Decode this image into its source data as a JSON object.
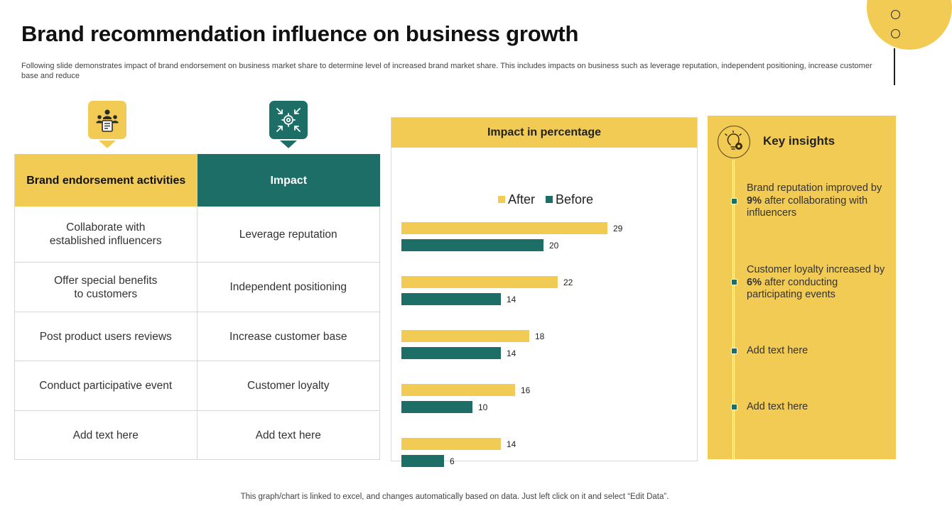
{
  "slide": {
    "title": "Brand recommendation influence on business growth",
    "subtitle": "Following slide demonstrates impact of brand endorsement on business market share to determine level of increased brand market share. This includes impacts on business such as leverage reputation, independent positioning, increase customer base and reduce",
    "footer": "This graph/chart is linked to excel,  and changes automatically based on data. Just left click on it and select “Edit Data”."
  },
  "colors": {
    "yellow": "#F2CB55",
    "teal": "#1D6E67"
  },
  "table": {
    "headers": [
      "Brand endorsement activities",
      "Impact"
    ],
    "rows": [
      [
        "Collaborate with\nestablished influencers",
        "Leverage reputation"
      ],
      [
        "Offer special benefits\nto customers",
        "Independent  positioning"
      ],
      [
        "Post product users reviews",
        "Increase  customer base"
      ],
      [
        "Conduct participative event",
        "Customer loyalty"
      ],
      [
        "Add text here",
        "Add text here"
      ]
    ]
  },
  "chart": {
    "header": "Impact in percentage"
  },
  "chart_data": {
    "type": "bar",
    "orientation": "horizontal",
    "title": "Impact in percentage",
    "legend": [
      "After",
      "Before"
    ],
    "legend_position": "top",
    "series": [
      {
        "name": "After",
        "color": "#F2CB55",
        "values": [
          29,
          22,
          18,
          16,
          14
        ]
      },
      {
        "name": "Before",
        "color": "#1D6E67",
        "values": [
          20,
          14,
          14,
          10,
          6
        ]
      }
    ],
    "xlim": [
      0,
      30
    ],
    "grid": false
  },
  "insights": {
    "title": "Key insights",
    "items": [
      {
        "pre": "Brand reputation improved by ",
        "bold": "9%",
        "post": " after collaborating with influencers"
      },
      {
        "pre": "Customer loyalty increased by ",
        "bold": "6%",
        "post": " after conducting participating events"
      },
      {
        "pre": "Add text here",
        "bold": "",
        "post": ""
      },
      {
        "pre": "Add text here",
        "bold": "",
        "post": ""
      }
    ]
  }
}
